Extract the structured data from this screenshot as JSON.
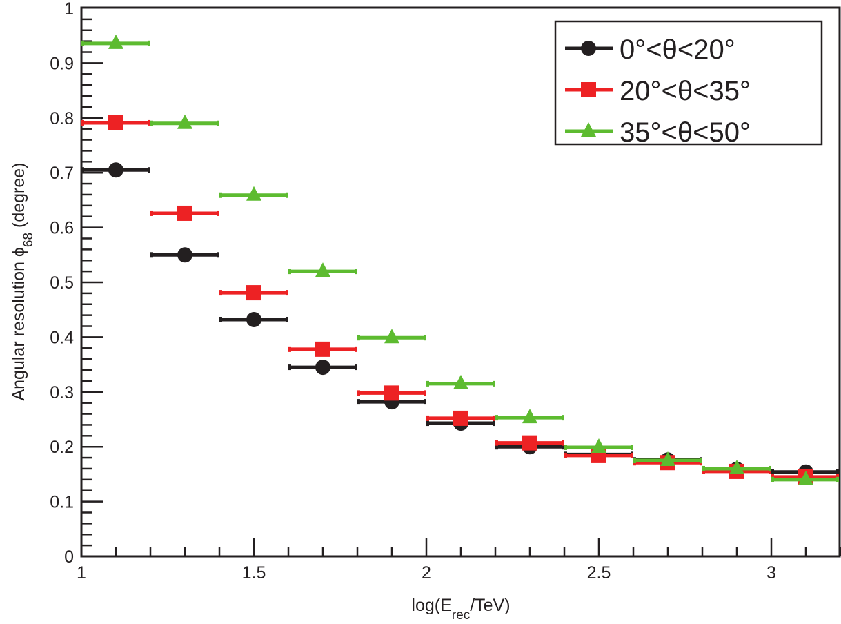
{
  "chart_data": {
    "type": "scatter",
    "title": "",
    "xlabel": {
      "main": "log(E",
      "sub": "rec",
      "tail": "/TeV)"
    },
    "ylabel": {
      "main": "Angular resolution ϕ",
      "sub": "68",
      "tail": " (degree)"
    },
    "xlim": [
      1,
      3.2
    ],
    "ylim": [
      0,
      1
    ],
    "x_ticks": [
      1,
      1.5,
      2,
      2.5,
      3
    ],
    "x_tick_labels": [
      "1",
      "1.5",
      "2",
      "2.5",
      "3"
    ],
    "y_ticks": [
      0,
      0.1,
      0.2,
      0.3,
      0.4,
      0.5,
      0.6,
      0.7,
      0.8,
      0.9,
      1
    ],
    "y_tick_labels": [
      "0",
      "0.1",
      "0.2",
      "0.3",
      "0.4",
      "0.5",
      "0.6",
      "0.7",
      "0.8",
      "0.9",
      "1"
    ],
    "grid": false,
    "legend_position": "top-right",
    "bin_half_width": 0.1,
    "x": [
      1.1,
      1.3,
      1.5,
      1.7,
      1.9,
      2.1,
      2.3,
      2.5,
      2.7,
      2.9,
      3.1
    ],
    "series": [
      {
        "name": "0°<θ<20°",
        "color": "#231f20",
        "marker": "circle",
        "values": [
          0.705,
          0.55,
          0.432,
          0.345,
          0.282,
          0.243,
          0.2,
          0.186,
          0.176,
          0.159,
          0.154
        ]
      },
      {
        "name": "20°<θ<35°",
        "color": "#ed2224",
        "marker": "square",
        "values": [
          0.791,
          0.626,
          0.481,
          0.378,
          0.298,
          0.252,
          0.207,
          0.184,
          0.171,
          0.155,
          0.145
        ]
      },
      {
        "name": "35°<θ<50°",
        "color": "#5dbb30",
        "marker": "triangle",
        "values": [
          0.936,
          0.79,
          0.659,
          0.52,
          0.399,
          0.315,
          0.253,
          0.199,
          0.175,
          0.16,
          0.14
        ]
      }
    ]
  }
}
